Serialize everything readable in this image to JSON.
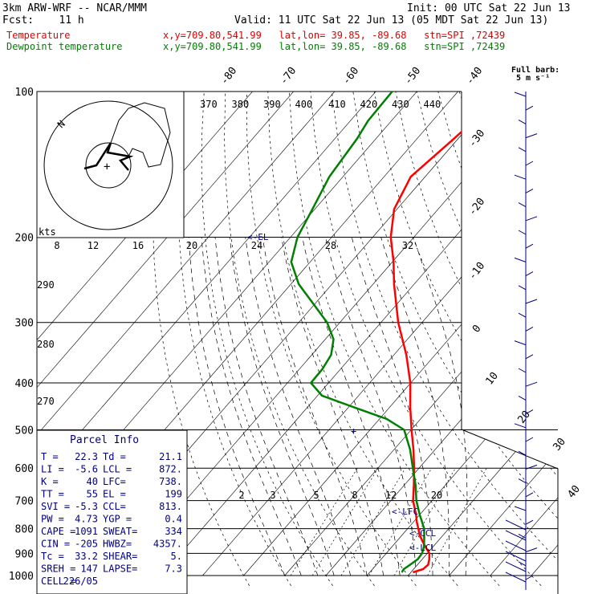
{
  "header": {
    "model": "3km ARW-WRF -- NCAR/MMM",
    "init": "Init: 00 UTC Sat 22 Jun 13",
    "fcst": "Fcst:    11 h",
    "valid": "Valid: 11 UTC Sat 22 Jun 13 (05 MDT Sat 22 Jun 13)",
    "temp_line": {
      "label": "Temperature",
      "info": "x,y=709.80,541.99   lat,lon= 39.85, -89.68   stn=SPI ,72439"
    },
    "dew_line": {
      "label": "Dewpoint temperature",
      "info": "x,y=709.80,541.99   lat,lon= 39.85, -89.68   stn=SPI ,72439"
    },
    "barb_key": {
      "line1": "Full barb:",
      "line2": "5 m s⁻¹"
    }
  },
  "colors": {
    "temperature": "#ff0000",
    "dewpoint": "#008000",
    "wind": "#000080",
    "text": "#000000",
    "parcel_text": "#000080"
  },
  "chart_data": {
    "type": "line",
    "subtype": "skew-T log-P sounding",
    "y_axis": {
      "label": "",
      "scale": "log",
      "ticks": [
        100,
        200,
        300,
        400,
        500,
        600,
        700,
        800,
        900,
        1000
      ]
    },
    "isotherm_labels": [
      "-80",
      "-70",
      "-60",
      "-50",
      "-40",
      "-30",
      "-20",
      "-10",
      "0",
      "10",
      "20",
      "30",
      "40"
    ],
    "theta_e_labels": [
      "370",
      "380",
      "390",
      "400",
      "410",
      "420",
      "430",
      "440"
    ],
    "theta_labels": [
      "290",
      "280",
      "270"
    ],
    "mixing_ratio_labels": [
      "2",
      "3",
      "5",
      "8",
      "12",
      "20"
    ],
    "series": [
      {
        "name": "Temperature",
        "color": "#ff0000",
        "p": [
          985,
          970,
          950,
          925,
          900,
          875,
          850,
          825,
          800,
          775,
          750,
          700,
          650,
          600,
          550,
          500,
          450,
          400,
          350,
          300,
          250,
          225,
          200,
          175,
          150,
          125,
          115,
          100
        ],
        "t": [
          20.5,
          22.3,
          22.6,
          21.7,
          20.5,
          18.4,
          16.3,
          14.3,
          12.6,
          10.8,
          9.2,
          5.4,
          2.3,
          -1.2,
          -5.2,
          -9.9,
          -14.9,
          -20.1,
          -27.0,
          -35.8,
          -44.9,
          -49.7,
          -55.6,
          -60.7,
          -63.5,
          -61.0,
          -60.0,
          -57.2
        ]
      },
      {
        "name": "Dewpoint temperature",
        "color": "#008000",
        "p": [
          985,
          970,
          950,
          925,
          900,
          875,
          850,
          825,
          800,
          775,
          750,
          700,
          650,
          600,
          550,
          500,
          475,
          450,
          425,
          400,
          375,
          350,
          325,
          300,
          250,
          225,
          200,
          175,
          150,
          125,
          115,
          100
        ],
        "td": [
          17.8,
          17.6,
          18.2,
          18.9,
          18.7,
          17.9,
          16.7,
          15.4,
          14.0,
          12.1,
          10.1,
          6.2,
          2.7,
          -1.5,
          -6.0,
          -11.7,
          -18.2,
          -28.3,
          -38.9,
          -44.3,
          -44.4,
          -45.3,
          -48.0,
          -53.1,
          -68.1,
          -74.6,
          -78.3,
          -80.6,
          -83.3,
          -84.6,
          -85.7,
          -86.0
        ]
      }
    ],
    "parcel_markers": [
      "<-LFC",
      "<-CCL",
      "<-LCL",
      "<-EL"
    ],
    "hodograph": {
      "units": "kts",
      "ring_labels": [
        "8",
        "12",
        "16",
        "20",
        "24",
        "28",
        "32"
      ],
      "axis_label": "N"
    }
  },
  "parcel": {
    "title": "Parcel Info",
    "rows": [
      [
        "T  =",
        "22.3",
        "Td =",
        "21.1"
      ],
      [
        "LI =",
        "-5.6",
        "LCL =",
        "872."
      ],
      [
        "K  =",
        "40",
        "LFC=",
        "738."
      ],
      [
        "TT =",
        "55",
        "EL =",
        "199"
      ],
      [
        "SVI =",
        "-5.3",
        "CCL=",
        "813."
      ],
      [
        "PW =",
        "4.73",
        "YGP =",
        "0.4"
      ],
      [
        "CAPE =",
        "1091",
        "SWEAT=",
        "334"
      ],
      [
        "CIN =",
        "-205",
        "HWBZ=",
        "4357."
      ],
      [
        "Tc =",
        "33.2",
        "SHEAR=",
        "5."
      ],
      [
        "SREH =",
        "147",
        "LAPSE=",
        "7.3"
      ],
      [
        "CELL =",
        "226/05",
        "",
        ""
      ]
    ]
  }
}
